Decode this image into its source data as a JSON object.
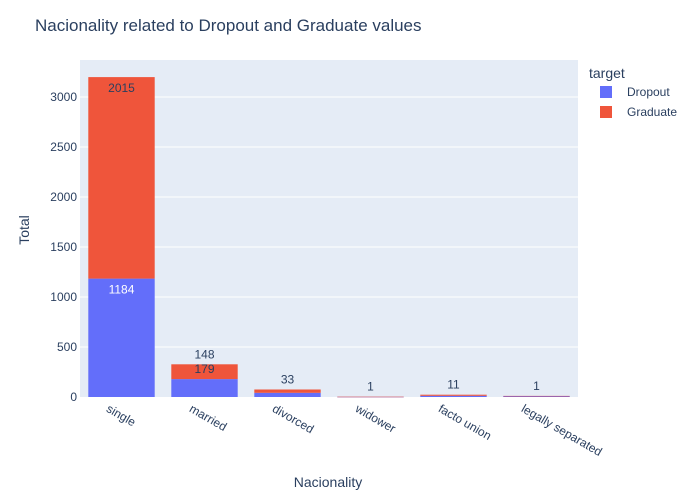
{
  "chart_data": {
    "type": "bar",
    "barmode": "stack",
    "title": "Nacionality related to Dropout and Graduate values",
    "xlabel": "Nacionality",
    "ylabel": "Total",
    "categories": [
      "single",
      "married",
      "divorced",
      "widower",
      "facto union",
      "legally separated"
    ],
    "series": [
      {
        "name": "Dropout",
        "color": "#636efa",
        "values": [
          1184,
          179,
          42,
          2,
          12,
          10
        ],
        "labels": [
          "1184",
          "179",
          "",
          "",
          "",
          ""
        ]
      },
      {
        "name": "Graduate",
        "color": "#ef553b",
        "values": [
          2015,
          148,
          33,
          1,
          11,
          1
        ],
        "labels": [
          "2015",
          "148",
          "33",
          "1",
          "11",
          "1"
        ]
      }
    ],
    "ylim": [
      0,
      3370
    ],
    "yticks": [
      0,
      500,
      1000,
      1500,
      2000,
      2500,
      3000
    ],
    "legend": {
      "title": "target",
      "position": "top-right"
    },
    "plot_bgcolor": "#e5ecf6",
    "grid": true
  }
}
